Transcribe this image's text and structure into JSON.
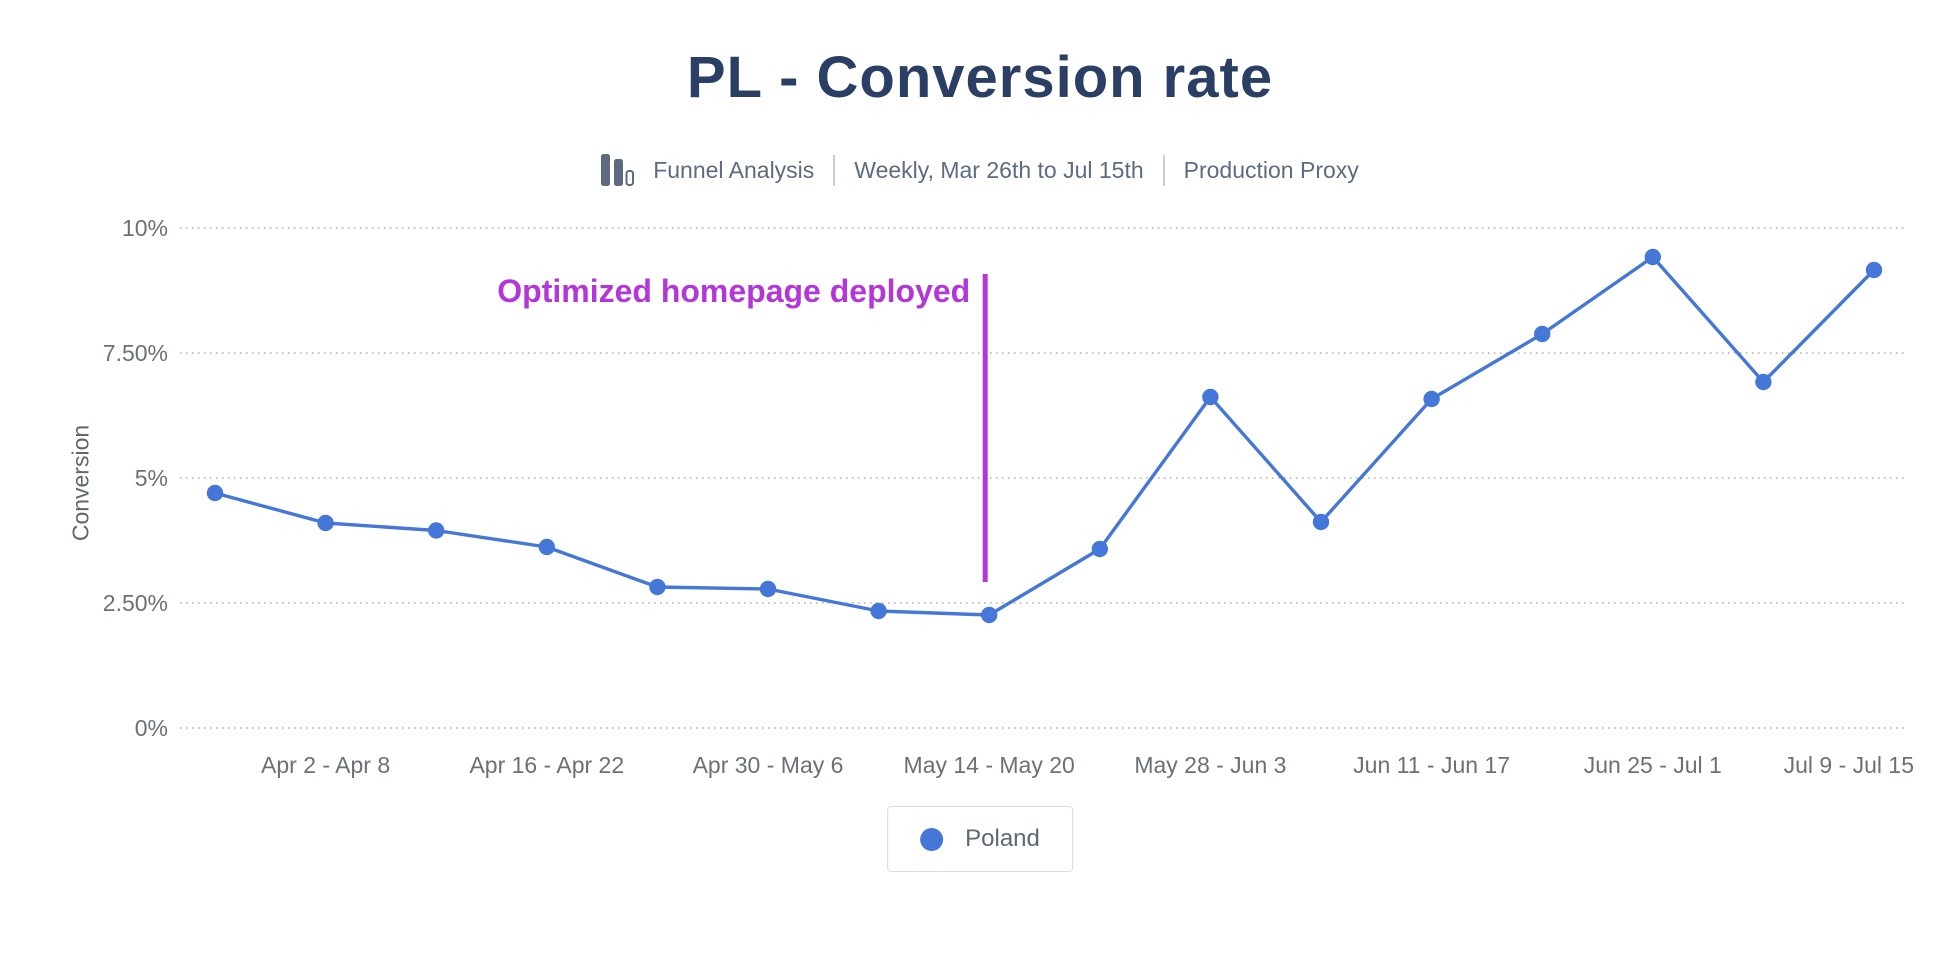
{
  "chart_data": {
    "type": "line",
    "title": "PL - Conversion rate",
    "subtitle": {
      "source_icon": "funnel-bars-icon",
      "source": "Funnel Analysis",
      "range": "Weekly, Mar 26th to Jul 15th",
      "environment": "Production Proxy"
    },
    "ylabel": "Conversion",
    "ylim": [
      0,
      10
    ],
    "grid": "dotted-horizontal",
    "y_ticks": [
      {
        "label": "10%",
        "value": 10
      },
      {
        "label": "7.50%",
        "value": 7.5
      },
      {
        "label": "5%",
        "value": 5
      },
      {
        "label": "2.50%",
        "value": 2.5
      },
      {
        "label": "0%",
        "value": 0
      }
    ],
    "x_ticks": [
      {
        "label": "Apr 2 - Apr 8",
        "index": 1
      },
      {
        "label": "Apr 16 - Apr 22",
        "index": 3
      },
      {
        "label": "Apr 30 - May 6",
        "index": 5
      },
      {
        "label": "May 14 - May 20",
        "index": 7
      },
      {
        "label": "May 28 - Jun 3",
        "index": 9
      },
      {
        "label": "Jun 11 - Jun 17",
        "index": 11
      },
      {
        "label": "Jun 25 - Jul 1",
        "index": 13
      },
      {
        "label": "Jul 9 - Jul 15",
        "index": 15
      }
    ],
    "series": [
      {
        "name": "Poland",
        "color": "#4577d8",
        "values": [
          4.7,
          4.1,
          3.95,
          3.62,
          2.82,
          2.78,
          2.34,
          2.26,
          3.58,
          6.62,
          4.12,
          6.58,
          7.88,
          9.42,
          6.92,
          9.16
        ]
      }
    ],
    "annotation": {
      "text": "Optimized homepage deployed",
      "color": "#b336d9",
      "at_index": 7
    },
    "legend": {
      "position": "bottom",
      "entries": [
        "Poland"
      ]
    }
  }
}
